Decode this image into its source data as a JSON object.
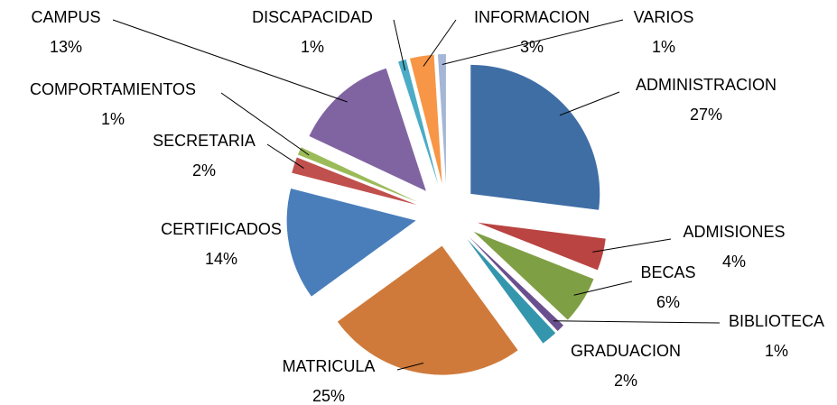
{
  "chart_data": {
    "type": "pie",
    "categories": [
      "ADMINISTRACION",
      "ADMISIONES",
      "BECAS",
      "BIBLIOTECA",
      "GRADUACION",
      "MATRICULA",
      "CERTIFICADOS",
      "SECRETARIA",
      "COMPORTAMIENTOS",
      "CAMPUS",
      "DISCAPACIDAD",
      "INFORMACION",
      "VARIOS"
    ],
    "values": [
      27,
      4,
      6,
      1,
      2,
      25,
      14,
      2,
      1,
      13,
      1,
      3,
      1
    ],
    "value_labels": [
      "27%",
      "4%",
      "6%",
      "1%",
      "2%",
      "25%",
      "14%",
      "2%",
      "1%",
      "13%",
      "1%",
      "3%",
      "1%"
    ],
    "colors": [
      "#3f6ea5",
      "#b94441",
      "#7f9f45",
      "#6a4f8e",
      "#3496ad",
      "#cf7a3a",
      "#4a7ebb",
      "#c0504d",
      "#9bbb59",
      "#8064a2",
      "#4bacc6",
      "#f79646",
      "#a5b6d6"
    ]
  }
}
